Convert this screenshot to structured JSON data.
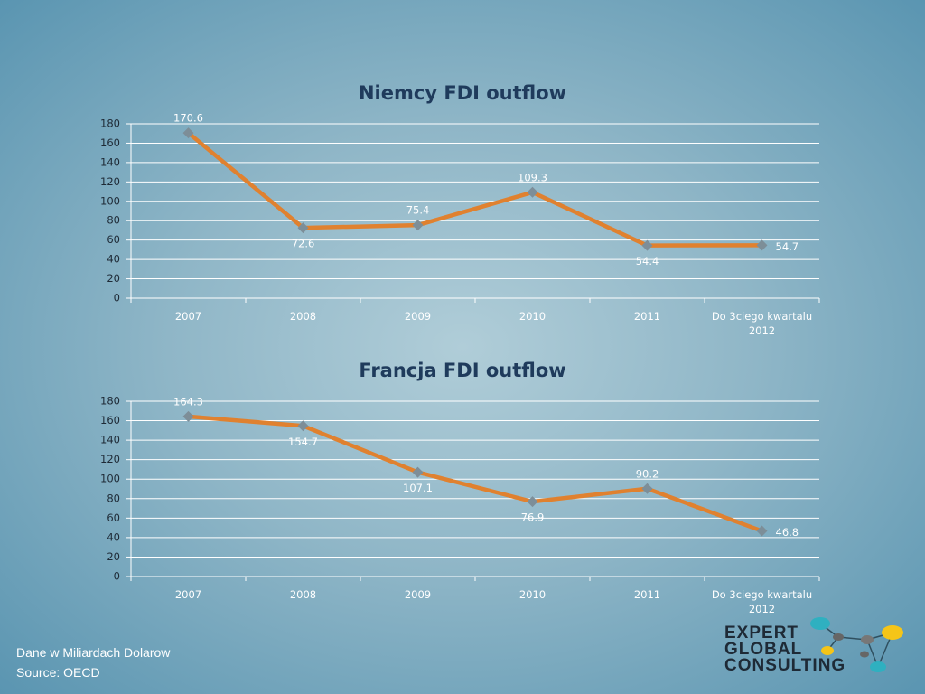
{
  "chart_data": [
    {
      "type": "line",
      "title": "Niemcy FDI outflow",
      "categories": [
        "2007",
        "2008",
        "2009",
        "2010",
        "2011",
        "Do 3ciego kwartalu 2012"
      ],
      "series": [
        {
          "name": "Niemcy",
          "color": "#e0812f",
          "values": [
            170.6,
            72.6,
            75.4,
            109.3,
            54.4,
            54.7
          ]
        }
      ],
      "ylim": [
        0,
        180
      ],
      "yticks": [
        0,
        20,
        40,
        60,
        80,
        100,
        120,
        140,
        160,
        180
      ],
      "grid": true
    },
    {
      "type": "line",
      "title": "Francja FDI outflow",
      "categories": [
        "2007",
        "2008",
        "2009",
        "2010",
        "2011",
        "Do 3ciego kwartalu 2012"
      ],
      "series": [
        {
          "name": "Francja",
          "color": "#e0812f",
          "values": [
            164.3,
            154.7,
            107.1,
            76.9,
            90.2,
            46.8
          ]
        }
      ],
      "ylim": [
        0,
        180
      ],
      "yticks": [
        0,
        20,
        40,
        60,
        80,
        100,
        120,
        140,
        160,
        180
      ],
      "grid": true
    }
  ],
  "footer": {
    "lines": [
      "Dane w Miliardach Dolarow",
      "Source:  OECD"
    ]
  },
  "logo": {
    "lines": [
      "EXPERT",
      "GLOBAL",
      "CONSULTING"
    ]
  }
}
